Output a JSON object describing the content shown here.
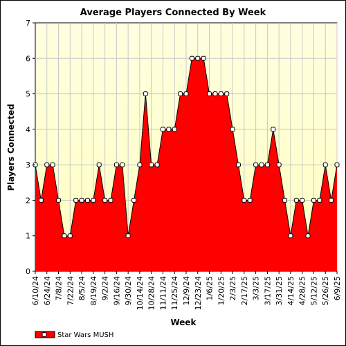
{
  "chart_data": {
    "type": "area",
    "title": "Average Players Connected By Week",
    "xlabel": "Week",
    "ylabel": "Players Connected",
    "ylim": [
      0,
      7
    ],
    "yticks": [
      0,
      1,
      2,
      3,
      4,
      5,
      6,
      7
    ],
    "grid": true,
    "legend_position": "bottom-left",
    "x_tick_labels": [
      "6/10/24",
      "6/24/24",
      "7/8/24",
      "7/22/24",
      "8/5/24",
      "8/19/24",
      "9/2/24",
      "9/16/24",
      "9/30/24",
      "10/14/24",
      "10/28/24",
      "11/11/24",
      "11/25/24",
      "12/9/24",
      "12/23/24",
      "1/6/25",
      "1/20/25",
      "2/3/25",
      "2/17/25",
      "3/3/25",
      "3/17/25",
      "3/31/25",
      "4/14/25",
      "4/28/25",
      "5/12/25",
      "5/26/25",
      "6/9/25"
    ],
    "series": [
      {
        "name": "Star Wars MUSH",
        "color": "#ff0000",
        "values": [
          3,
          2,
          3,
          3,
          2,
          1,
          1,
          2,
          2,
          2,
          2,
          3,
          2,
          2,
          3,
          3,
          1,
          2,
          3,
          5,
          3,
          3,
          4,
          4,
          4,
          5,
          5,
          6,
          6,
          6,
          5,
          5,
          5,
          5,
          4,
          3,
          2,
          2,
          3,
          3,
          3,
          4,
          3,
          2,
          1,
          2,
          2,
          1,
          2,
          2,
          3,
          2,
          3
        ]
      }
    ]
  }
}
